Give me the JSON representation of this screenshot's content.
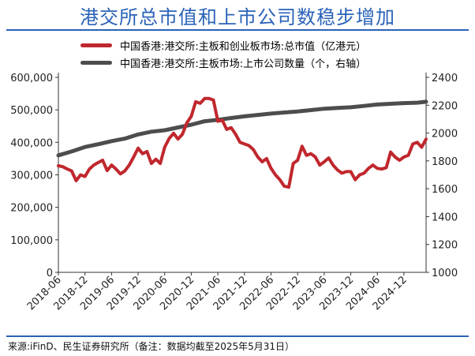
{
  "title": "港交所总市值和上市公司数稳步增加",
  "source": "来源:iFinD、民生证券研究所（备注：数据均截至2025年5月31日）",
  "colors": {
    "title": "#2a63b8",
    "market_cap": "#c0272d",
    "company_count": "#4d4d4d"
  },
  "chart_data": {
    "type": "line",
    "x_tick_labels": [
      "2018-06",
      "2018-12",
      "2019-06",
      "2019-12",
      "2020-06",
      "2020-12",
      "2021-06",
      "2021-12",
      "2022-06",
      "2022-12",
      "2023-06",
      "2023-12",
      "2024-06",
      "2024-12"
    ],
    "x_range": [
      "2018-06",
      "2025-05"
    ],
    "y_left": {
      "range": [
        0,
        600000
      ],
      "ticks": [
        "0",
        "100,000",
        "200,000",
        "300,000",
        "400,000",
        "500,000",
        "600,000"
      ]
    },
    "y_right": {
      "range": [
        1000,
        2400
      ],
      "ticks": [
        "1000",
        "1200",
        "1400",
        "1600",
        "1800",
        "2000",
        "2200",
        "2400"
      ]
    },
    "grid": false,
    "legend_position": "top",
    "series": [
      {
        "name": "中国香港:港交所:主板和创业板市场:总市值（亿港元）",
        "axis": "left",
        "points": [
          [
            "2018-06",
            328000
          ],
          [
            "2018-07",
            325000
          ],
          [
            "2018-08",
            318000
          ],
          [
            "2018-09",
            312000
          ],
          [
            "2018-10",
            282000
          ],
          [
            "2018-11",
            300000
          ],
          [
            "2018-12",
            295000
          ],
          [
            "2019-01",
            318000
          ],
          [
            "2019-02",
            330000
          ],
          [
            "2019-03",
            338000
          ],
          [
            "2019-04",
            345000
          ],
          [
            "2019-05",
            313000
          ],
          [
            "2019-06",
            330000
          ],
          [
            "2019-07",
            318000
          ],
          [
            "2019-08",
            303000
          ],
          [
            "2019-09",
            312000
          ],
          [
            "2019-10",
            330000
          ],
          [
            "2019-11",
            355000
          ],
          [
            "2019-12",
            382000
          ],
          [
            "2020-01",
            365000
          ],
          [
            "2020-02",
            372000
          ],
          [
            "2020-03",
            335000
          ],
          [
            "2020-04",
            348000
          ],
          [
            "2020-05",
            335000
          ],
          [
            "2020-06",
            385000
          ],
          [
            "2020-07",
            412000
          ],
          [
            "2020-08",
            428000
          ],
          [
            "2020-09",
            410000
          ],
          [
            "2020-10",
            425000
          ],
          [
            "2020-11",
            460000
          ],
          [
            "2020-12",
            480000
          ],
          [
            "2021-01",
            525000
          ],
          [
            "2021-02",
            520000
          ],
          [
            "2021-03",
            535000
          ],
          [
            "2021-04",
            535000
          ],
          [
            "2021-05",
            530000
          ],
          [
            "2021-06",
            465000
          ],
          [
            "2021-07",
            468000
          ],
          [
            "2021-08",
            440000
          ],
          [
            "2021-09",
            445000
          ],
          [
            "2021-10",
            425000
          ],
          [
            "2021-11",
            400000
          ],
          [
            "2021-12",
            395000
          ],
          [
            "2022-01",
            390000
          ],
          [
            "2022-02",
            378000
          ],
          [
            "2022-03",
            355000
          ],
          [
            "2022-04",
            340000
          ],
          [
            "2022-05",
            350000
          ],
          [
            "2022-06",
            320000
          ],
          [
            "2022-07",
            300000
          ],
          [
            "2022-08",
            285000
          ],
          [
            "2022-09",
            265000
          ],
          [
            "2022-10",
            262000
          ],
          [
            "2022-11",
            335000
          ],
          [
            "2022-12",
            345000
          ],
          [
            "2023-01",
            388000
          ],
          [
            "2023-02",
            360000
          ],
          [
            "2023-03",
            365000
          ],
          [
            "2023-04",
            355000
          ],
          [
            "2023-05",
            330000
          ],
          [
            "2023-06",
            340000
          ],
          [
            "2023-07",
            352000
          ],
          [
            "2023-08",
            330000
          ],
          [
            "2023-09",
            315000
          ],
          [
            "2023-10",
            305000
          ],
          [
            "2023-11",
            310000
          ],
          [
            "2023-12",
            310000
          ],
          [
            "2024-01",
            285000
          ],
          [
            "2024-02",
            300000
          ],
          [
            "2024-03",
            305000
          ],
          [
            "2024-04",
            320000
          ],
          [
            "2024-05",
            330000
          ],
          [
            "2024-06",
            320000
          ],
          [
            "2024-07",
            318000
          ],
          [
            "2024-08",
            322000
          ],
          [
            "2024-09",
            370000
          ],
          [
            "2024-10",
            355000
          ],
          [
            "2024-11",
            345000
          ],
          [
            "2024-12",
            355000
          ],
          [
            "2025-01",
            360000
          ],
          [
            "2025-02",
            395000
          ],
          [
            "2025-03",
            400000
          ],
          [
            "2025-04",
            385000
          ],
          [
            "2025-05",
            410000
          ]
        ]
      },
      {
        "name": "中国香港:港交所:主板市场:上市公司数量（个，右轴）",
        "axis": "right",
        "points": [
          [
            "2018-06",
            1840
          ],
          [
            "2018-09",
            1868
          ],
          [
            "2018-12",
            1900
          ],
          [
            "2019-03",
            1920
          ],
          [
            "2019-06",
            1942
          ],
          [
            "2019-09",
            1960
          ],
          [
            "2019-12",
            1990
          ],
          [
            "2020-03",
            2010
          ],
          [
            "2020-06",
            2020
          ],
          [
            "2020-09",
            2040
          ],
          [
            "2020-12",
            2060
          ],
          [
            "2021-03",
            2085
          ],
          [
            "2021-06",
            2095
          ],
          [
            "2021-09",
            2108
          ],
          [
            "2021-12",
            2120
          ],
          [
            "2022-03",
            2130
          ],
          [
            "2022-06",
            2140
          ],
          [
            "2022-09",
            2148
          ],
          [
            "2022-12",
            2155
          ],
          [
            "2023-03",
            2165
          ],
          [
            "2023-06",
            2175
          ],
          [
            "2023-09",
            2180
          ],
          [
            "2023-12",
            2185
          ],
          [
            "2024-03",
            2195
          ],
          [
            "2024-06",
            2205
          ],
          [
            "2024-09",
            2210
          ],
          [
            "2024-12",
            2215
          ],
          [
            "2025-03",
            2218
          ],
          [
            "2025-05",
            2225
          ]
        ]
      }
    ]
  }
}
